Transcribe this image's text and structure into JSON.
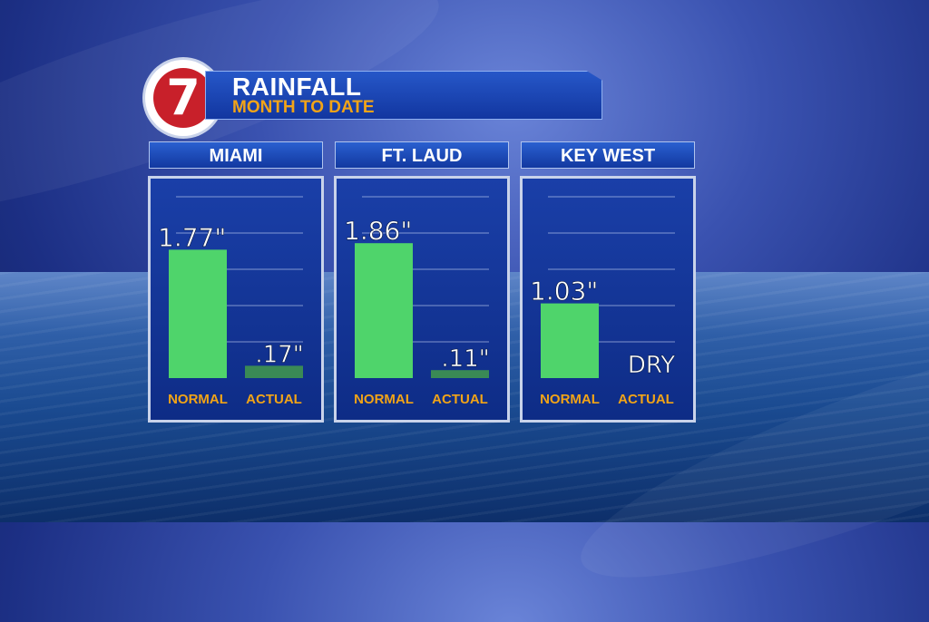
{
  "header": {
    "logo_text": "7",
    "title": "RAINFALL",
    "subtitle": "MONTH TO DATE"
  },
  "colors": {
    "bar_normal": "#4fd46b",
    "bar_actual": "#3a8a55",
    "label_orange": "#f2a417",
    "value_text": "#ffffff"
  },
  "chart_data": [
    {
      "type": "bar",
      "title": "MIAMI",
      "categories": [
        "NORMAL",
        "ACTUAL"
      ],
      "values": [
        1.77,
        0.17
      ],
      "value_labels": [
        "1.77\"",
        ".17\""
      ],
      "unit": "inches",
      "ylim": [
        0,
        2.5
      ],
      "grid": true
    },
    {
      "type": "bar",
      "title": "FT. LAUD",
      "categories": [
        "NORMAL",
        "ACTUAL"
      ],
      "values": [
        1.86,
        0.11
      ],
      "value_labels": [
        "1.86\"",
        ".11\""
      ],
      "unit": "inches",
      "ylim": [
        0,
        2.5
      ],
      "grid": true
    },
    {
      "type": "bar",
      "title": "KEY WEST",
      "categories": [
        "NORMAL",
        "ACTUAL"
      ],
      "values": [
        1.03,
        0
      ],
      "value_labels": [
        "1.03\"",
        "DRY"
      ],
      "unit": "inches",
      "ylim": [
        0,
        2.5
      ],
      "grid": true
    }
  ]
}
